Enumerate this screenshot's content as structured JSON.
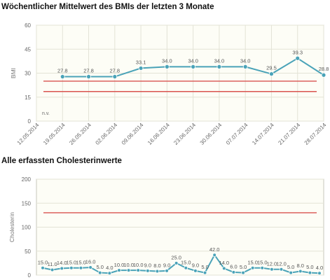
{
  "chart_data": [
    {
      "type": "line",
      "title": "Wöchentlicher Mittelwert des BMIs der letzten 3 Monate",
      "ylabel": "BMI",
      "xlabel": "",
      "ylim": [
        0,
        60
      ],
      "y_ticks": [
        "0",
        "15",
        "30",
        "45",
        "60"
      ],
      "categories": [
        "12.05.2014",
        "19.05.2014",
        "26.05.2014",
        "02.06.2014",
        "09.06.2014",
        "16.06.2014",
        "23.06.2014",
        "30.06.2014",
        "07.07.2014",
        "14.07.2014",
        "21.07.2014",
        "28.07.2014"
      ],
      "values": [
        null,
        27.8,
        27.8,
        27.8,
        33.1,
        34.0,
        34.0,
        34.0,
        34.0,
        29.5,
        39.3,
        28.8
      ],
      "labels": [
        "",
        "27.8",
        "27.8",
        "27.8",
        "33.1",
        "34.0",
        "34.0",
        "34.0",
        "34.0",
        "29.5",
        "39.3",
        "28.8"
      ],
      "reference_lines": [
        25,
        18.5
      ],
      "annotation": "n.v.",
      "grid": true,
      "colors": {
        "line": "#4aa3b8",
        "reference": "#d9534f",
        "plot_bg": "#fdfdf6",
        "grid": "#e3e3d6"
      }
    },
    {
      "type": "line",
      "title": "Alle erfassten Cholesterinwerte",
      "ylabel": "Cholesterin",
      "xlabel": "",
      "ylim": [
        0,
        200
      ],
      "y_ticks": [
        "0",
        "50",
        "100",
        "150",
        "200"
      ],
      "values": [
        15.0,
        11.0,
        14.0,
        15.0,
        15.0,
        16.0,
        5.0,
        4.0,
        10.0,
        10.0,
        10.0,
        9.0,
        8.0,
        9.0,
        25.0,
        15.0,
        9.0,
        5.0,
        42.0,
        14.0,
        6.0,
        5.0,
        15.0,
        15.0,
        12.0,
        12.0,
        5.0,
        8.0,
        5.0,
        4.0
      ],
      "labels": [
        "15.0",
        "11.0",
        "14.0",
        "15.0",
        "15.0",
        "16.0",
        "5.0",
        "4.0",
        "10.0",
        "10.0",
        "10.0",
        "9.0",
        "8.0",
        "9.0",
        "25.0",
        "15.0",
        "9.0",
        "5.0",
        "42.0",
        "14.0",
        "6.0",
        "5.0",
        "15.0",
        "15.0",
        "12.0",
        "12.0",
        "5.0",
        "8.0",
        "5.0",
        "4.0"
      ],
      "reference_lines": [
        130
      ],
      "grid": true,
      "colors": {
        "line": "#4aa3b8",
        "reference": "#d9534f",
        "plot_bg": "#fdfdf6",
        "grid": "#e3e3d6"
      }
    }
  ]
}
